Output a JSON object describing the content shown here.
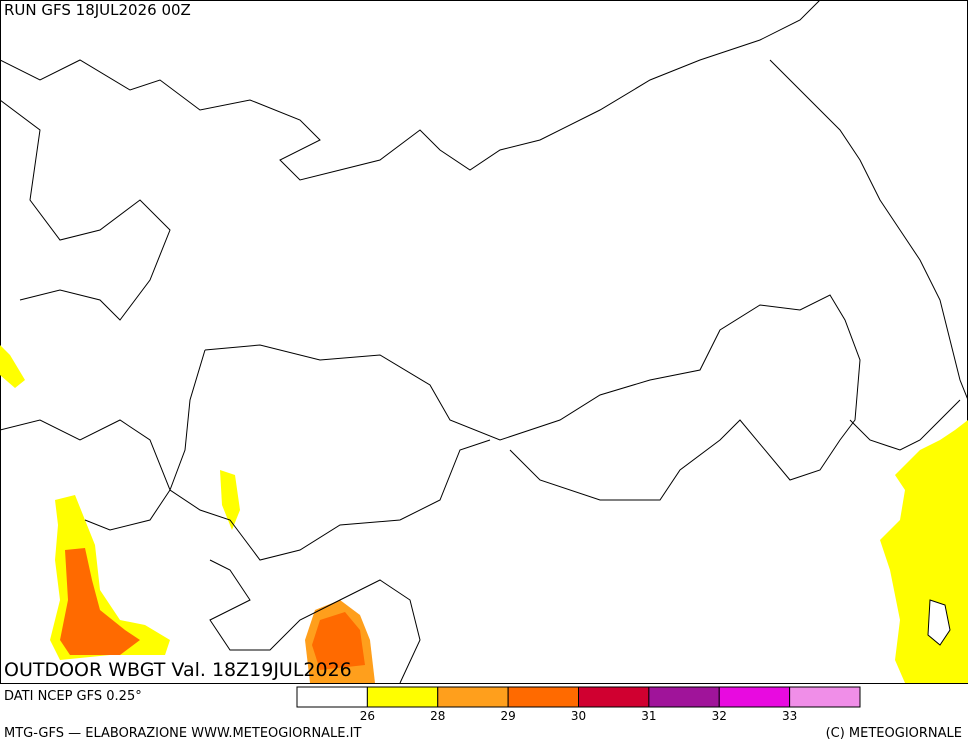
{
  "header": {
    "run": "RUN GFS 18JUL2026 00Z"
  },
  "map": {
    "title": "OUTDOOR WBGT Val. 18Z19JUL2026"
  },
  "footer": {
    "source": "DATI NCEP GFS 0.25°",
    "credit": "MTG-GFS — ELABORAZIONE WWW.METEOGIORNALE.IT",
    "copyright": "(C) METEOGIORNALE"
  },
  "legend": {
    "colors": [
      "#ffffff",
      "#ffff00",
      "#ff9f1c",
      "#ff6a00",
      "#d00030",
      "#a0149a",
      "#e80ae0",
      "#f08ee8"
    ],
    "ticks": [
      26,
      28,
      29,
      30,
      31,
      32,
      33
    ]
  }
}
